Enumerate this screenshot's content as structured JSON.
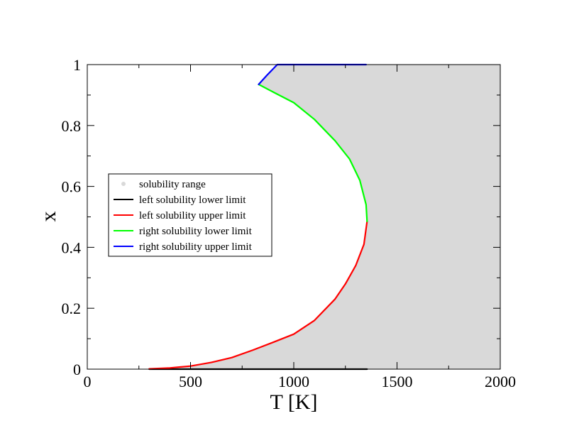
{
  "chart_data": {
    "type": "line",
    "xlabel": "T [K]",
    "ylabel": "x",
    "xlim": [
      0,
      2000
    ],
    "ylim": [
      0,
      1
    ],
    "x_ticks": [
      0,
      500,
      1000,
      1500,
      2000
    ],
    "y_ticks": [
      0,
      0.2,
      0.4,
      0.6,
      0.8,
      1
    ],
    "x_tick_labels": [
      "0",
      "500",
      "1000",
      "1500",
      "2000"
    ],
    "y_tick_labels": [
      "0",
      "0.2",
      "0.4",
      "0.6",
      "0.8",
      "1"
    ],
    "grid": false,
    "legend_position": "center-left",
    "series": [
      {
        "name": "solubility range",
        "kind": "filled-region",
        "color": "#d9d9d9",
        "x": [
          300,
          400,
          500,
          600,
          700,
          800,
          900,
          1000,
          1100,
          1200,
          1250,
          1300,
          1340,
          1355,
          1350,
          1320,
          1270,
          1200,
          1100,
          1000,
          900,
          830,
          920,
          2000,
          2000
        ],
        "y": [
          0.001,
          0.004,
          0.01,
          0.022,
          0.038,
          0.062,
          0.088,
          0.115,
          0.16,
          0.23,
          0.28,
          0.34,
          0.41,
          0.485,
          0.54,
          0.62,
          0.69,
          0.75,
          0.82,
          0.875,
          0.91,
          0.935,
          1.0,
          1.0,
          0
        ]
      },
      {
        "name": "left solubility lower limit",
        "kind": "line",
        "color": "#000000",
        "x": [
          300,
          600,
          900,
          1200,
          1355
        ],
        "y": [
          0,
          0,
          0,
          0,
          0
        ]
      },
      {
        "name": "left solubility upper limit",
        "kind": "line",
        "color": "#ff0000",
        "x": [
          300,
          400,
          500,
          600,
          700,
          800,
          900,
          1000,
          1100,
          1200,
          1250,
          1300,
          1340,
          1355
        ],
        "y": [
          0.001,
          0.004,
          0.01,
          0.022,
          0.038,
          0.062,
          0.088,
          0.115,
          0.16,
          0.23,
          0.28,
          0.34,
          0.41,
          0.485
        ]
      },
      {
        "name": "right solubility lower limit",
        "kind": "line",
        "color": "#00ff00",
        "x": [
          1355,
          1350,
          1320,
          1270,
          1200,
          1100,
          1000,
          900,
          830
        ],
        "y": [
          0.485,
          0.54,
          0.62,
          0.69,
          0.75,
          0.82,
          0.875,
          0.91,
          0.935
        ]
      },
      {
        "name": "right solubility upper limit",
        "kind": "line",
        "color": "#0000ff",
        "x": [
          830,
          870,
          920,
          1100,
          1350
        ],
        "y": [
          0.935,
          0.965,
          1.0,
          1.0,
          1.0
        ]
      }
    ]
  }
}
